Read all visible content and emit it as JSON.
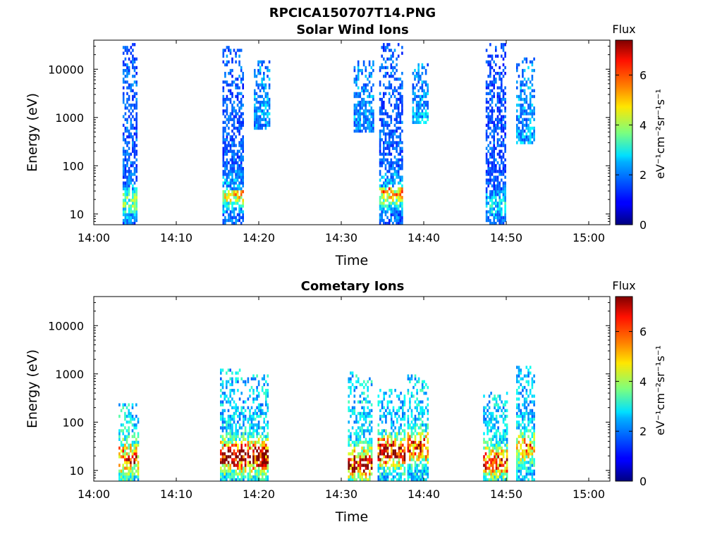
{
  "figure_title": "RPCICA150707T14.PNG",
  "colors": {
    "colormap": "jet",
    "axes": "#000000",
    "background": "#ffffff"
  },
  "chart_data": [
    {
      "type": "heatmap",
      "title": "Solar Wind Ions",
      "xlabel": "Time",
      "ylabel": "Energy (eV)",
      "yscale": "log",
      "ylim": [
        6,
        40000
      ],
      "x_tick_labels": [
        "14:00",
        "14:10",
        "14:20",
        "14:30",
        "14:40",
        "14:50",
        "15:00"
      ],
      "xlim_minutes": [
        0,
        63
      ],
      "y_ticks": [
        10,
        100,
        1000,
        10000
      ],
      "y_tick_labels": [
        "10",
        "100",
        "1000",
        "10000"
      ],
      "colorbar": {
        "title": "Flux",
        "label": "eV⁻¹cm⁻²sr⁻¹s⁻¹",
        "range": [
          0,
          7.4
        ],
        "ticks": [
          0,
          2,
          4,
          6
        ],
        "tick_labels": [
          "0",
          "2",
          "4",
          "6"
        ]
      },
      "bursts": [
        {
          "t_start": 3.5,
          "t_end": 5.3,
          "e_low": 6,
          "e_high": 36000,
          "intensity": 1.6,
          "peak_energy": 18,
          "peak_intensity": 3.5
        },
        {
          "t_start": 15.6,
          "t_end": 18.2,
          "e_low": 6,
          "e_high": 32000,
          "intensity": 1.6,
          "peak_energy": 28,
          "peak_intensity": 4.6
        },
        {
          "t_start": 19.4,
          "t_end": 21.4,
          "e_low": 600,
          "e_high": 16000,
          "intensity": 2.0,
          "peak_energy": 2000,
          "peak_intensity": 2.4
        },
        {
          "t_start": 31.5,
          "t_end": 34.0,
          "e_low": 500,
          "e_high": 15000,
          "intensity": 1.9,
          "peak_energy": 2000,
          "peak_intensity": 2.3
        },
        {
          "t_start": 34.6,
          "t_end": 37.5,
          "e_low": 6,
          "e_high": 36000,
          "intensity": 1.6,
          "peak_energy": 30,
          "peak_intensity": 5.0
        },
        {
          "t_start": 38.6,
          "t_end": 40.6,
          "e_low": 700,
          "e_high": 13000,
          "intensity": 2.0,
          "peak_energy": 1500,
          "peak_intensity": 2.4
        },
        {
          "t_start": 47.5,
          "t_end": 50.0,
          "e_low": 6,
          "e_high": 36000,
          "intensity": 1.5,
          "peak_energy": 15,
          "peak_intensity": 2.6
        },
        {
          "t_start": 51.2,
          "t_end": 53.5,
          "e_low": 300,
          "e_high": 18000,
          "intensity": 2.1,
          "peak_energy": 2000,
          "peak_intensity": 2.4
        }
      ]
    },
    {
      "type": "heatmap",
      "title": "Cometary Ions",
      "xlabel": "Time",
      "ylabel": "Energy (eV)",
      "yscale": "log",
      "ylim": [
        6,
        40000
      ],
      "x_tick_labels": [
        "14:00",
        "14:10",
        "14:20",
        "14:30",
        "14:40",
        "14:50",
        "15:00"
      ],
      "xlim_minutes": [
        0,
        63
      ],
      "y_ticks": [
        10,
        100,
        1000,
        10000
      ],
      "y_tick_labels": [
        "10",
        "100",
        "1000",
        "10000"
      ],
      "colorbar": {
        "title": "Flux",
        "label": "eV⁻¹cm⁻²sr⁻¹s⁻¹",
        "range": [
          0,
          7.4
        ],
        "ticks": [
          0,
          2,
          4,
          6
        ],
        "tick_labels": [
          "0",
          "2",
          "4",
          "6"
        ]
      },
      "bursts": [
        {
          "t_start": 3.0,
          "t_end": 5.5,
          "e_low": 6,
          "e_high": 230,
          "intensity": 2.6,
          "peak_energy": 18,
          "peak_intensity": 6.0
        },
        {
          "t_start": 15.3,
          "t_end": 18.5,
          "e_low": 6,
          "e_high": 1300,
          "intensity": 2.4,
          "peak_energy": 20,
          "peak_intensity": 7.2
        },
        {
          "t_start": 18.6,
          "t_end": 21.2,
          "e_low": 6,
          "e_high": 1000,
          "intensity": 2.5,
          "peak_energy": 20,
          "peak_intensity": 7.2
        },
        {
          "t_start": 30.8,
          "t_end": 33.8,
          "e_low": 6,
          "e_high": 1100,
          "intensity": 2.5,
          "peak_energy": 14,
          "peak_intensity": 6.6
        },
        {
          "t_start": 34.4,
          "t_end": 37.8,
          "e_low": 6,
          "e_high": 500,
          "intensity": 2.4,
          "peak_energy": 25,
          "peak_intensity": 7.3
        },
        {
          "t_start": 38.0,
          "t_end": 40.6,
          "e_low": 6,
          "e_high": 1000,
          "intensity": 2.5,
          "peak_energy": 30,
          "peak_intensity": 6.2
        },
        {
          "t_start": 47.2,
          "t_end": 50.2,
          "e_low": 6,
          "e_high": 400,
          "intensity": 2.4,
          "peak_energy": 15,
          "peak_intensity": 6.0
        },
        {
          "t_start": 51.2,
          "t_end": 53.5,
          "e_low": 6,
          "e_high": 1500,
          "intensity": 2.3,
          "peak_energy": 30,
          "peak_intensity": 5.2
        }
      ]
    }
  ]
}
